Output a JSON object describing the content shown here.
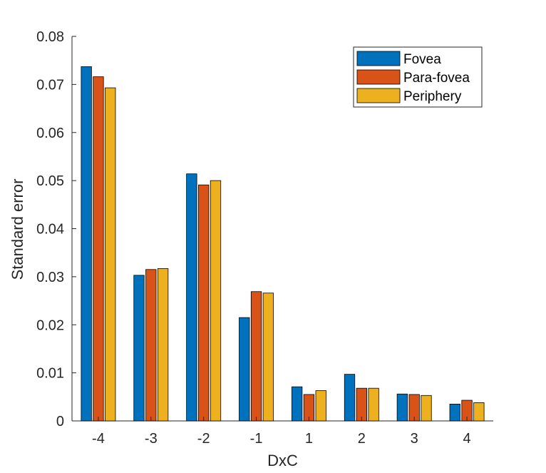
{
  "chart_data": {
    "type": "bar",
    "categories": [
      "-4",
      "-3",
      "-2",
      "-1",
      "1",
      "2",
      "3",
      "4"
    ],
    "series": [
      {
        "name": "Fovea",
        "color": "#0072BD",
        "values": [
          0.0737,
          0.0303,
          0.0514,
          0.0215,
          0.0071,
          0.0097,
          0.0056,
          0.0035
        ]
      },
      {
        "name": "Para-fovea",
        "color": "#D95319",
        "values": [
          0.0716,
          0.0315,
          0.0491,
          0.0269,
          0.0055,
          0.0068,
          0.0055,
          0.0043
        ]
      },
      {
        "name": "Periphery",
        "color": "#EDB120",
        "values": [
          0.0693,
          0.0317,
          0.05,
          0.0266,
          0.0063,
          0.0068,
          0.0053,
          0.0038
        ]
      }
    ],
    "xlabel": "DxC",
    "ylabel": "Standard error",
    "ylim": [
      0,
      0.08
    ],
    "yticks": [
      "0",
      "0.01",
      "0.02",
      "0.03",
      "0.04",
      "0.05",
      "0.06",
      "0.07",
      "0.08"
    ],
    "grid": false,
    "legend_position": "top-right"
  }
}
